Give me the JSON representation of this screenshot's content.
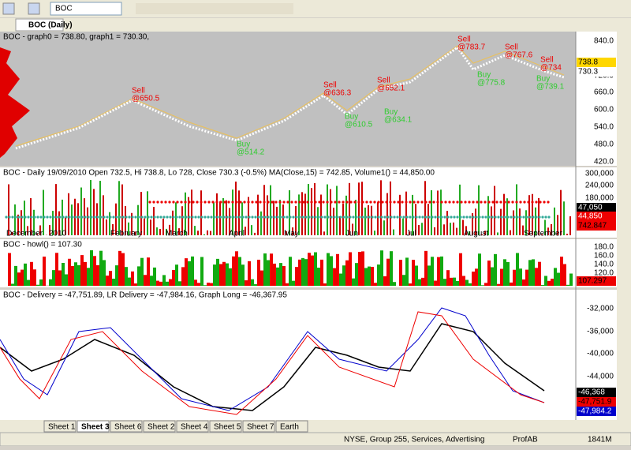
{
  "toolbar": {
    "symbol": "BOC"
  },
  "chart_tab": "BOC (Daily)",
  "price_pane": {
    "header": "BOC - graph0 = 738.80, graph1 = 730.30,",
    "axis": [
      "840.0",
      "720.0",
      "660.0",
      "600.0",
      "540.0",
      "480.0",
      "420.0"
    ],
    "value_boxes": [
      "738.8",
      "730.3"
    ],
    "signals": [
      {
        "label": "Sell",
        "price": "@650.5"
      },
      {
        "label": "Buy",
        "price": "@514.2"
      },
      {
        "label": "Sell",
        "price": "@636.3"
      },
      {
        "label": "Buy",
        "price": "@610.5"
      },
      {
        "label": "Sell",
        "price": "@652.1"
      },
      {
        "label": "Buy",
        "price": "@634.1"
      },
      {
        "label": "Sell",
        "price": "@783.7"
      },
      {
        "label": "Buy",
        "price": "@775.8"
      },
      {
        "label": "Sell",
        "price": "@767.6"
      },
      {
        "label": "Sell",
        "price": "@734"
      },
      {
        "label": "Buy",
        "price": "@739.1"
      }
    ]
  },
  "volume_pane": {
    "header": "BOC - Daily 19/09/2010 Open 732.5, Hi 738.8, Lo 728, Close 730.3 (-0.5%) MA(Close,15) = 742.85, Volume1() = 44,850.00",
    "axis": [
      "300,000",
      "240,000",
      "180,000"
    ],
    "value_boxes": [
      "47,050",
      "44,850",
      "742.847"
    ],
    "months": [
      "December",
      "2010",
      "February",
      "March",
      "April",
      "May",
      "Jun",
      "Jul",
      "August",
      "September"
    ]
  },
  "howl_pane": {
    "header": "BOC - howl() = 107.30",
    "axis": [
      "180.0",
      "160.0",
      "140.0",
      "120.0"
    ],
    "value_boxes": [
      "107.297"
    ]
  },
  "delivery_pane": {
    "header": "BOC - Delivery = -47,751.89, LR Delivery = -47,984.16, Graph Long = -46,367.95",
    "axis": [
      "-32,000",
      "-36,000",
      "-40,000",
      "-44,000"
    ],
    "value_boxes": [
      "-46,368",
      "-47,751.9",
      "-47,984.2"
    ]
  },
  "sheets": [
    "Sheet 1",
    "Sheet 3",
    "Sheet 6",
    "Sheet 2",
    "Sheet 4",
    "Sheet 5",
    "Sheet 7",
    "Earth"
  ],
  "status": {
    "info": "NYSE, Group 255, Services, Advertising",
    "db": "ProfAB",
    "memory": "1841M"
  }
}
